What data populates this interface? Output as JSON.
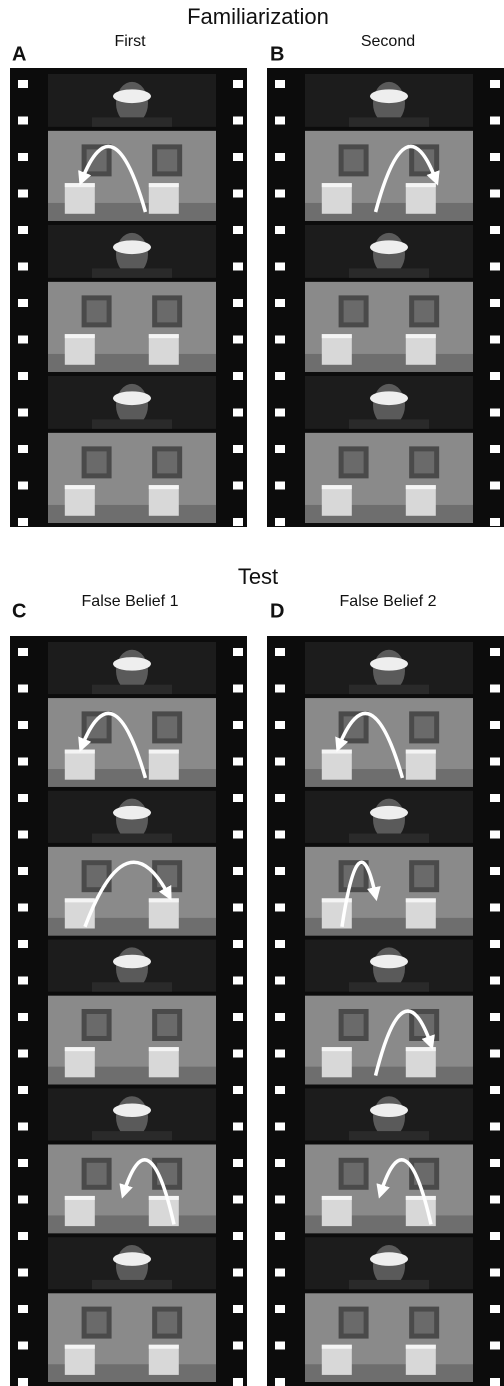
{
  "figure": {
    "sections": [
      {
        "title": "Familiarization",
        "panels": [
          {
            "letter": "A",
            "label": "First"
          },
          {
            "letter": "B",
            "label": "Second"
          }
        ]
      },
      {
        "title": "Test",
        "panels": [
          {
            "letter": "C",
            "label": "False Belief 1"
          },
          {
            "letter": "D",
            "label": "False Belief 2"
          }
        ]
      }
    ]
  }
}
